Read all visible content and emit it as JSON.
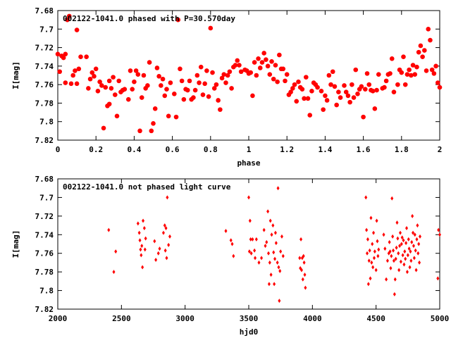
{
  "colors": {
    "points": "#ff0000",
    "axes": "#000000",
    "background": "#ffffff"
  },
  "chart_data": [
    {
      "type": "scatter",
      "title": "002122-1041.0 phased with P=30.570day",
      "xlabel": "phase",
      "ylabel": "I[mag]",
      "xlim": [
        0,
        2
      ],
      "ylim": [
        7.82,
        7.68
      ],
      "y_inverted": true,
      "grid": false,
      "marker": "filled-circle-large",
      "x_ticks": [
        "0",
        "0.2",
        "0.4",
        "0.6",
        "0.8",
        "1",
        "1.2",
        "1.4",
        "1.6",
        "1.8",
        "2"
      ],
      "y_ticks": [
        "7.68",
        "7.7",
        "7.72",
        "7.74",
        "7.76",
        "7.78",
        "7.8",
        "7.82"
      ],
      "points": [
        [
          0.0,
          7.727
        ],
        [
          0.01,
          7.746
        ],
        [
          0.02,
          7.729
        ],
        [
          0.03,
          7.731
        ],
        [
          0.04,
          7.727
        ],
        [
          0.04,
          7.758
        ],
        [
          0.05,
          7.69
        ],
        [
          0.06,
          7.686
        ],
        [
          0.07,
          7.759
        ],
        [
          0.08,
          7.75
        ],
        [
          0.09,
          7.745
        ],
        [
          0.1,
          7.759
        ],
        [
          0.1,
          7.701
        ],
        [
          0.11,
          7.743
        ],
        [
          0.12,
          7.73
        ],
        [
          0.15,
          7.73
        ],
        [
          0.16,
          7.764
        ],
        [
          0.17,
          7.754
        ],
        [
          0.18,
          7.747
        ],
        [
          0.19,
          7.751
        ],
        [
          0.2,
          7.743
        ],
        [
          0.21,
          7.767
        ],
        [
          0.22,
          7.757
        ],
        [
          0.23,
          7.761
        ],
        [
          0.24,
          7.807
        ],
        [
          0.25,
          7.763
        ],
        [
          0.26,
          7.783
        ],
        [
          0.27,
          7.781
        ],
        [
          0.27,
          7.756
        ],
        [
          0.28,
          7.764
        ],
        [
          0.29,
          7.752
        ],
        [
          0.3,
          7.771
        ],
        [
          0.31,
          7.794
        ],
        [
          0.32,
          7.756
        ],
        [
          0.33,
          7.768
        ],
        [
          0.34,
          7.766
        ],
        [
          0.35,
          7.765
        ],
        [
          0.37,
          7.776
        ],
        [
          0.38,
          7.745
        ],
        [
          0.39,
          7.765
        ],
        [
          0.4,
          7.757
        ],
        [
          0.41,
          7.745
        ],
        [
          0.42,
          7.749
        ],
        [
          0.43,
          7.81
        ],
        [
          0.44,
          7.774
        ],
        [
          0.45,
          7.75
        ],
        [
          0.46,
          7.764
        ],
        [
          0.47,
          7.761
        ],
        [
          0.48,
          7.736
        ],
        [
          0.49,
          7.81
        ],
        [
          0.5,
          7.802
        ],
        [
          0.51,
          7.786
        ],
        [
          0.52,
          7.742
        ],
        [
          0.53,
          7.751
        ],
        [
          0.54,
          7.761
        ],
        [
          0.55,
          7.754
        ],
        [
          0.56,
          7.772
        ],
        [
          0.57,
          7.765
        ],
        [
          0.58,
          7.794
        ],
        [
          0.59,
          7.758
        ],
        [
          0.61,
          7.77
        ],
        [
          0.62,
          7.795
        ],
        [
          0.63,
          7.69
        ],
        [
          0.64,
          7.743
        ],
        [
          0.65,
          7.756
        ],
        [
          0.66,
          7.776
        ],
        [
          0.67,
          7.765
        ],
        [
          0.68,
          7.766
        ],
        [
          0.69,
          7.756
        ],
        [
          0.7,
          7.776
        ],
        [
          0.71,
          7.774
        ],
        [
          0.72,
          7.766
        ],
        [
          0.73,
          7.75
        ],
        [
          0.74,
          7.758
        ],
        [
          0.75,
          7.741
        ],
        [
          0.76,
          7.771
        ],
        [
          0.77,
          7.759
        ],
        [
          0.78,
          7.745
        ],
        [
          0.79,
          7.773
        ],
        [
          0.8,
          7.699
        ],
        [
          0.81,
          7.747
        ],
        [
          0.82,
          7.764
        ],
        [
          0.83,
          7.76
        ],
        [
          0.84,
          7.777
        ],
        [
          0.85,
          7.787
        ],
        [
          0.86,
          7.753
        ],
        [
          0.87,
          7.749
        ],
        [
          0.88,
          7.758
        ],
        [
          0.89,
          7.75
        ],
        [
          0.9,
          7.746
        ],
        [
          0.91,
          7.764
        ],
        [
          0.92,
          7.741
        ],
        [
          0.93,
          7.739
        ],
        [
          0.94,
          7.734
        ],
        [
          0.95,
          7.739
        ],
        [
          0.96,
          7.746
        ],
        [
          0.98,
          7.744
        ],
        [
          0.99,
          7.745
        ],
        [
          1.0,
          7.748
        ],
        [
          1.01,
          7.747
        ],
        [
          1.02,
          7.772
        ],
        [
          1.03,
          7.736
        ],
        [
          1.04,
          7.75
        ],
        [
          1.05,
          7.732
        ],
        [
          1.06,
          7.742
        ],
        [
          1.07,
          7.736
        ],
        [
          1.08,
          7.726
        ],
        [
          1.09,
          7.733
        ],
        [
          1.1,
          7.74
        ],
        [
          1.11,
          7.749
        ],
        [
          1.12,
          7.735
        ],
        [
          1.13,
          7.754
        ],
        [
          1.14,
          7.739
        ],
        [
          1.15,
          7.757
        ],
        [
          1.16,
          7.728
        ],
        [
          1.17,
          7.743
        ],
        [
          1.18,
          7.743
        ],
        [
          1.19,
          7.756
        ],
        [
          1.2,
          7.749
        ],
        [
          1.21,
          7.771
        ],
        [
          1.22,
          7.768
        ],
        [
          1.23,
          7.764
        ],
        [
          1.24,
          7.76
        ],
        [
          1.25,
          7.778
        ],
        [
          1.26,
          7.757
        ],
        [
          1.27,
          7.763
        ],
        [
          1.28,
          7.765
        ],
        [
          1.29,
          7.775
        ],
        [
          1.3,
          7.752
        ],
        [
          1.31,
          7.775
        ],
        [
          1.32,
          7.793
        ],
        [
          1.33,
          7.767
        ],
        [
          1.34,
          7.758
        ],
        [
          1.35,
          7.76
        ],
        [
          1.36,
          7.763
        ],
        [
          1.38,
          7.767
        ],
        [
          1.39,
          7.787
        ],
        [
          1.4,
          7.772
        ],
        [
          1.41,
          7.777
        ],
        [
          1.42,
          7.75
        ],
        [
          1.43,
          7.76
        ],
        [
          1.44,
          7.746
        ],
        [
          1.45,
          7.762
        ],
        [
          1.46,
          7.782
        ],
        [
          1.47,
          7.768
        ],
        [
          1.48,
          7.774
        ],
        [
          1.5,
          7.761
        ],
        [
          1.51,
          7.768
        ],
        [
          1.52,
          7.772
        ],
        [
          1.53,
          7.779
        ],
        [
          1.54,
          7.76
        ],
        [
          1.55,
          7.774
        ],
        [
          1.56,
          7.744
        ],
        [
          1.57,
          7.77
        ],
        [
          1.58,
          7.765
        ],
        [
          1.59,
          7.762
        ],
        [
          1.6,
          7.795
        ],
        [
          1.61,
          7.765
        ],
        [
          1.62,
          7.748
        ],
        [
          1.63,
          7.76
        ],
        [
          1.64,
          7.766
        ],
        [
          1.65,
          7.767
        ],
        [
          1.66,
          7.786
        ],
        [
          1.67,
          7.766
        ],
        [
          1.68,
          7.749
        ],
        [
          1.7,
          7.764
        ],
        [
          1.71,
          7.763
        ],
        [
          1.72,
          7.756
        ],
        [
          1.73,
          7.749
        ],
        [
          1.74,
          7.748
        ],
        [
          1.75,
          7.732
        ],
        [
          1.76,
          7.768
        ],
        [
          1.78,
          7.76
        ],
        [
          1.79,
          7.744
        ],
        [
          1.8,
          7.747
        ],
        [
          1.81,
          7.73
        ],
        [
          1.82,
          7.76
        ],
        [
          1.83,
          7.749
        ],
        [
          1.84,
          7.744
        ],
        [
          1.85,
          7.75
        ],
        [
          1.86,
          7.739
        ],
        [
          1.87,
          7.749
        ],
        [
          1.88,
          7.741
        ],
        [
          1.89,
          7.725
        ],
        [
          1.9,
          7.718
        ],
        [
          1.91,
          7.73
        ],
        [
          1.92,
          7.723
        ],
        [
          1.93,
          7.745
        ],
        [
          1.94,
          7.7
        ],
        [
          1.95,
          7.712
        ],
        [
          1.96,
          7.744
        ],
        [
          1.97,
          7.748
        ],
        [
          1.98,
          7.74
        ],
        [
          1.99,
          7.758
        ],
        [
          2.0,
          7.763
        ]
      ]
    },
    {
      "type": "scatter",
      "title": "002122-1041.0 not phased light curve",
      "xlabel": "hjd0",
      "ylabel": "I[mag]",
      "xlim": [
        2000,
        5000
      ],
      "ylim": [
        7.82,
        7.68
      ],
      "y_inverted": true,
      "grid": false,
      "marker": "small-diamond",
      "x_ticks": [
        "2000",
        "2500",
        "3000",
        "3500",
        "4000",
        "4500",
        "5000"
      ],
      "y_ticks": [
        "7.68",
        "7.7",
        "7.72",
        "7.74",
        "7.76",
        "7.78",
        "7.8",
        "7.82"
      ],
      "points": [
        [
          2400,
          7.735
        ],
        [
          2440,
          7.78
        ],
        [
          2455,
          7.758
        ],
        [
          2630,
          7.728
        ],
        [
          2640,
          7.738
        ],
        [
          2645,
          7.746
        ],
        [
          2650,
          7.756
        ],
        [
          2655,
          7.762
        ],
        [
          2660,
          7.752
        ],
        [
          2665,
          7.775
        ],
        [
          2670,
          7.725
        ],
        [
          2680,
          7.733
        ],
        [
          2685,
          7.756
        ],
        [
          2690,
          7.744
        ],
        [
          2760,
          7.747
        ],
        [
          2770,
          7.767
        ],
        [
          2790,
          7.76
        ],
        [
          2800,
          7.755
        ],
        [
          2830,
          7.738
        ],
        [
          2840,
          7.73
        ],
        [
          2845,
          7.757
        ],
        [
          2850,
          7.733
        ],
        [
          2855,
          7.765
        ],
        [
          2860,
          7.7
        ],
        [
          2870,
          7.751
        ],
        [
          2880,
          7.742
        ],
        [
          3320,
          7.736
        ],
        [
          3360,
          7.746
        ],
        [
          3370,
          7.75
        ],
        [
          3380,
          7.763
        ],
        [
          3500,
          7.7
        ],
        [
          3505,
          7.758
        ],
        [
          3510,
          7.725
        ],
        [
          3515,
          7.745
        ],
        [
          3520,
          7.76
        ],
        [
          3530,
          7.745
        ],
        [
          3545,
          7.757
        ],
        [
          3550,
          7.765
        ],
        [
          3560,
          7.745
        ],
        [
          3580,
          7.77
        ],
        [
          3600,
          7.765
        ],
        [
          3620,
          7.735
        ],
        [
          3630,
          7.752
        ],
        [
          3640,
          7.748
        ],
        [
          3650,
          7.715
        ],
        [
          3655,
          7.76
        ],
        [
          3660,
          7.793
        ],
        [
          3665,
          7.77
        ],
        [
          3670,
          7.725
        ],
        [
          3675,
          7.783
        ],
        [
          3680,
          7.74
        ],
        [
          3690,
          7.73
        ],
        [
          3695,
          7.759
        ],
        [
          3700,
          7.793
        ],
        [
          3705,
          7.766
        ],
        [
          3710,
          7.738
        ],
        [
          3715,
          7.749
        ],
        [
          3725,
          7.77
        ],
        [
          3730,
          7.69
        ],
        [
          3735,
          7.775
        ],
        [
          3740,
          7.811
        ],
        [
          3745,
          7.779
        ],
        [
          3750,
          7.758
        ],
        [
          3760,
          7.742
        ],
        [
          3770,
          7.763
        ],
        [
          3900,
          7.765
        ],
        [
          3905,
          7.776
        ],
        [
          3910,
          7.745
        ],
        [
          3915,
          7.778
        ],
        [
          3920,
          7.765
        ],
        [
          3925,
          7.788
        ],
        [
          3930,
          7.763
        ],
        [
          3935,
          7.77
        ],
        [
          3940,
          7.783
        ],
        [
          3945,
          7.797
        ],
        [
          4420,
          7.7
        ],
        [
          4425,
          7.735
        ],
        [
          4430,
          7.76
        ],
        [
          4435,
          7.745
        ],
        [
          4440,
          7.793
        ],
        [
          4445,
          7.768
        ],
        [
          4450,
          7.757
        ],
        [
          4455,
          7.787
        ],
        [
          4460,
          7.722
        ],
        [
          4465,
          7.77
        ],
        [
          4470,
          7.75
        ],
        [
          4475,
          7.775
        ],
        [
          4480,
          7.738
        ],
        [
          4485,
          7.765
        ],
        [
          4490,
          7.758
        ],
        [
          4500,
          7.778
        ],
        [
          4505,
          7.725
        ],
        [
          4510,
          7.747
        ],
        [
          4515,
          7.763
        ],
        [
          4520,
          7.756
        ],
        [
          4560,
          7.74
        ],
        [
          4570,
          7.755
        ],
        [
          4580,
          7.788
        ],
        [
          4590,
          7.768
        ],
        [
          4600,
          7.76
        ],
        [
          4605,
          7.748
        ],
        [
          4610,
          7.758
        ],
        [
          4615,
          7.776
        ],
        [
          4620,
          7.763
        ],
        [
          4625,
          7.701
        ],
        [
          4630,
          7.742
        ],
        [
          4635,
          7.757
        ],
        [
          4640,
          7.768
        ],
        [
          4645,
          7.804
        ],
        [
          4650,
          7.788
        ],
        [
          4655,
          7.766
        ],
        [
          4660,
          7.754
        ],
        [
          4665,
          7.727
        ],
        [
          4670,
          7.744
        ],
        [
          4675,
          7.76
        ],
        [
          4680,
          7.778
        ],
        [
          4685,
          7.752
        ],
        [
          4690,
          7.738
        ],
        [
          4695,
          7.769
        ],
        [
          4700,
          7.75
        ],
        [
          4705,
          7.743
        ],
        [
          4710,
          7.762
        ],
        [
          4715,
          7.746
        ],
        [
          4720,
          7.772
        ],
        [
          4725,
          7.758
        ],
        [
          4730,
          7.766
        ],
        [
          4735,
          7.749
        ],
        [
          4740,
          7.733
        ],
        [
          4745,
          7.78
        ],
        [
          4750,
          7.762
        ],
        [
          4755,
          7.745
        ],
        [
          4760,
          7.755
        ],
        [
          4765,
          7.775
        ],
        [
          4770,
          7.758
        ],
        [
          4775,
          7.768
        ],
        [
          4780,
          7.748
        ],
        [
          4785,
          7.72
        ],
        [
          4790,
          7.738
        ],
        [
          4795,
          7.752
        ],
        [
          4800,
          7.765
        ],
        [
          4805,
          7.74
        ],
        [
          4810,
          7.757
        ],
        [
          4815,
          7.778
        ],
        [
          4820,
          7.745
        ],
        [
          4825,
          7.73
        ],
        [
          4830,
          7.76
        ],
        [
          4835,
          7.75
        ],
        [
          4840,
          7.77
        ],
        [
          4845,
          7.742
        ],
        [
          4985,
          7.787
        ],
        [
          4990,
          7.735
        ],
        [
          5000,
          7.74
        ]
      ]
    }
  ]
}
